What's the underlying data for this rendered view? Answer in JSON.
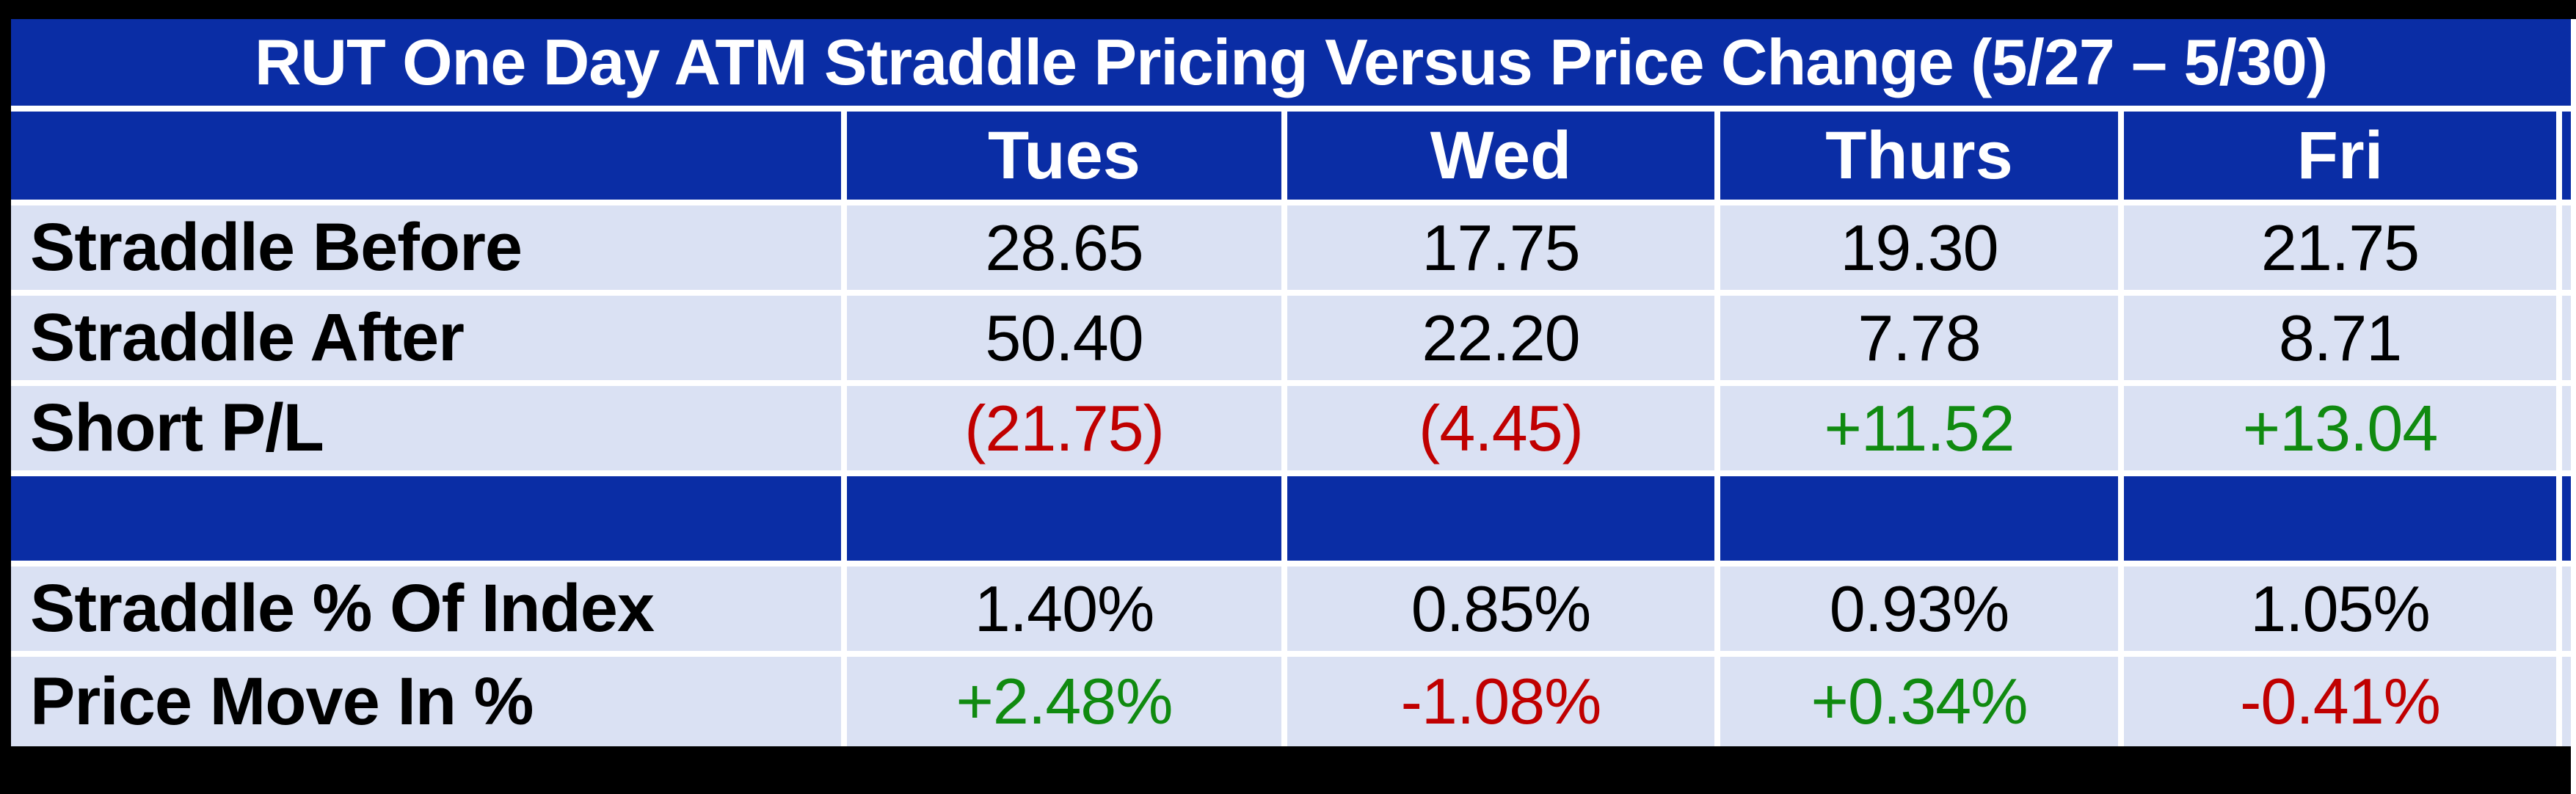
{
  "chart_data": {
    "type": "table",
    "title": "RUT One Day ATM Straddle Pricing Versus Price Change (5/27 – 5/30)",
    "columns": [
      "Tues",
      "Wed",
      "Thurs",
      "Fri"
    ],
    "rows": [
      {
        "label": "Straddle Before",
        "values": [
          "28.65",
          "17.75",
          "19.30",
          "21.75"
        ],
        "tones": [
          "neutral",
          "neutral",
          "neutral",
          "neutral"
        ]
      },
      {
        "label": "Straddle After",
        "values": [
          "50.40",
          "22.20",
          "7.78",
          "8.71"
        ],
        "tones": [
          "neutral",
          "neutral",
          "neutral",
          "neutral"
        ]
      },
      {
        "label": "Short P/L",
        "values": [
          "(21.75)",
          "(4.45)",
          "+11.52",
          "+13.04"
        ],
        "tones": [
          "loss",
          "loss",
          "gain",
          "gain"
        ]
      },
      {
        "label": "",
        "values": [
          "",
          "",
          "",
          ""
        ],
        "tones": [
          "spacer",
          "spacer",
          "spacer",
          "spacer"
        ]
      },
      {
        "label": "Straddle % Of Index",
        "values": [
          "1.40%",
          "0.85%",
          "0.93%",
          "1.05%"
        ],
        "tones": [
          "neutral",
          "neutral",
          "neutral",
          "neutral"
        ]
      },
      {
        "label": "Price Move In %",
        "values": [
          "+2.48%",
          "-1.08%",
          "+0.34%",
          "-0.41%"
        ],
        "tones": [
          "gain",
          "loss",
          "gain",
          "loss"
        ]
      }
    ],
    "layout_hints": {
      "grid": "white gridlines between all cells",
      "legend": "none",
      "negative_values_style": "parentheses or minus sign, red",
      "positive_values_style": "plus sign, green"
    },
    "colors": {
      "header_background": "#0A2DA5",
      "data_row_background": "#DAE1F3",
      "gain_text": "#108A10",
      "loss_text": "#C00000",
      "neutral_text": "#000000",
      "header_text": "#FFFFFF",
      "frame_background": "#000000",
      "gridline": "#FFFFFF"
    }
  }
}
